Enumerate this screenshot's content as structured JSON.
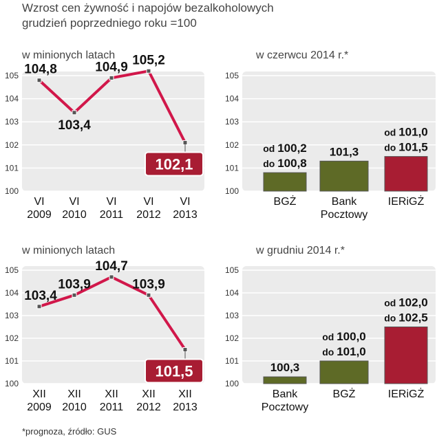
{
  "header": {
    "title_line1": "Wzrost cen żywność i napojów bezalkoholowych",
    "title_line2": "grudzień poprzedniego roku =100"
  },
  "footer": {
    "note": "*prognoza, źródło: GUS"
  },
  "colors": {
    "line": "#d1174a",
    "olive": "#5e6a26",
    "crimson": "#a81d33",
    "plot_bg": "#ebebeb",
    "highlight": "#a81d33"
  },
  "chart_data": [
    {
      "id": "june_history",
      "type": "line",
      "subtitle": "w minionych latach",
      "categories": [
        "VI\n2009",
        "VI\n2010",
        "VI\n2011",
        "VI\n2012",
        "VI\n2013"
      ],
      "values": [
        104.8,
        103.4,
        104.9,
        105.2,
        102.1
      ],
      "labels": [
        "104,8",
        "103,4",
        "104,9",
        "105,2",
        "102,1"
      ],
      "highlight_last": true,
      "ylim": [
        100,
        105
      ],
      "yticks": [
        "100",
        "101",
        "102",
        "103",
        "104",
        "105"
      ]
    },
    {
      "id": "june_2014",
      "type": "bar",
      "subtitle": "w czerwcu 2014 r.*",
      "categories": [
        "BGŻ",
        "Bank\nPocztowy",
        "IERiGŻ"
      ],
      "ranges": [
        [
          100.2,
          100.8
        ],
        [
          101.3,
          101.3
        ],
        [
          101.0,
          101.5
        ]
      ],
      "labels": [
        [
          "od 100,2",
          "do 100,8"
        ],
        [
          "101,3"
        ],
        [
          "od 101,0",
          "do 101,5"
        ]
      ],
      "colors": [
        "#5e6a26",
        "#5e6a26",
        "#a81d33"
      ],
      "ylim": [
        100,
        105
      ],
      "yticks": [
        "100",
        "101",
        "102",
        "103",
        "104",
        "105"
      ]
    },
    {
      "id": "december_history",
      "type": "line",
      "subtitle": "w minionych latach",
      "categories": [
        "XII\n2009",
        "XII\n2010",
        "XII\n2011",
        "XII\n2012",
        "XII\n2013"
      ],
      "values": [
        103.4,
        103.9,
        104.7,
        103.9,
        101.5
      ],
      "labels": [
        "103,4",
        "103,9",
        "104,7",
        "103,9",
        "101,5"
      ],
      "highlight_last": true,
      "ylim": [
        100,
        105
      ],
      "yticks": [
        "100",
        "101",
        "102",
        "103",
        "104",
        "105"
      ]
    },
    {
      "id": "december_2014",
      "type": "bar",
      "subtitle": "w grudniu 2014 r.*",
      "categories": [
        "Bank\nPocztowy",
        "BGŻ",
        "IERiGŻ"
      ],
      "ranges": [
        [
          100.3,
          100.3
        ],
        [
          100.0,
          101.0
        ],
        [
          102.0,
          102.5
        ]
      ],
      "labels": [
        [
          "100,3"
        ],
        [
          "od 100,0",
          "do 101,0"
        ],
        [
          "od 102,0",
          "do 102,5"
        ]
      ],
      "colors": [
        "#5e6a26",
        "#5e6a26",
        "#a81d33"
      ],
      "ylim": [
        100,
        105
      ],
      "yticks": [
        "100",
        "101",
        "102",
        "103",
        "104",
        "105"
      ]
    }
  ]
}
